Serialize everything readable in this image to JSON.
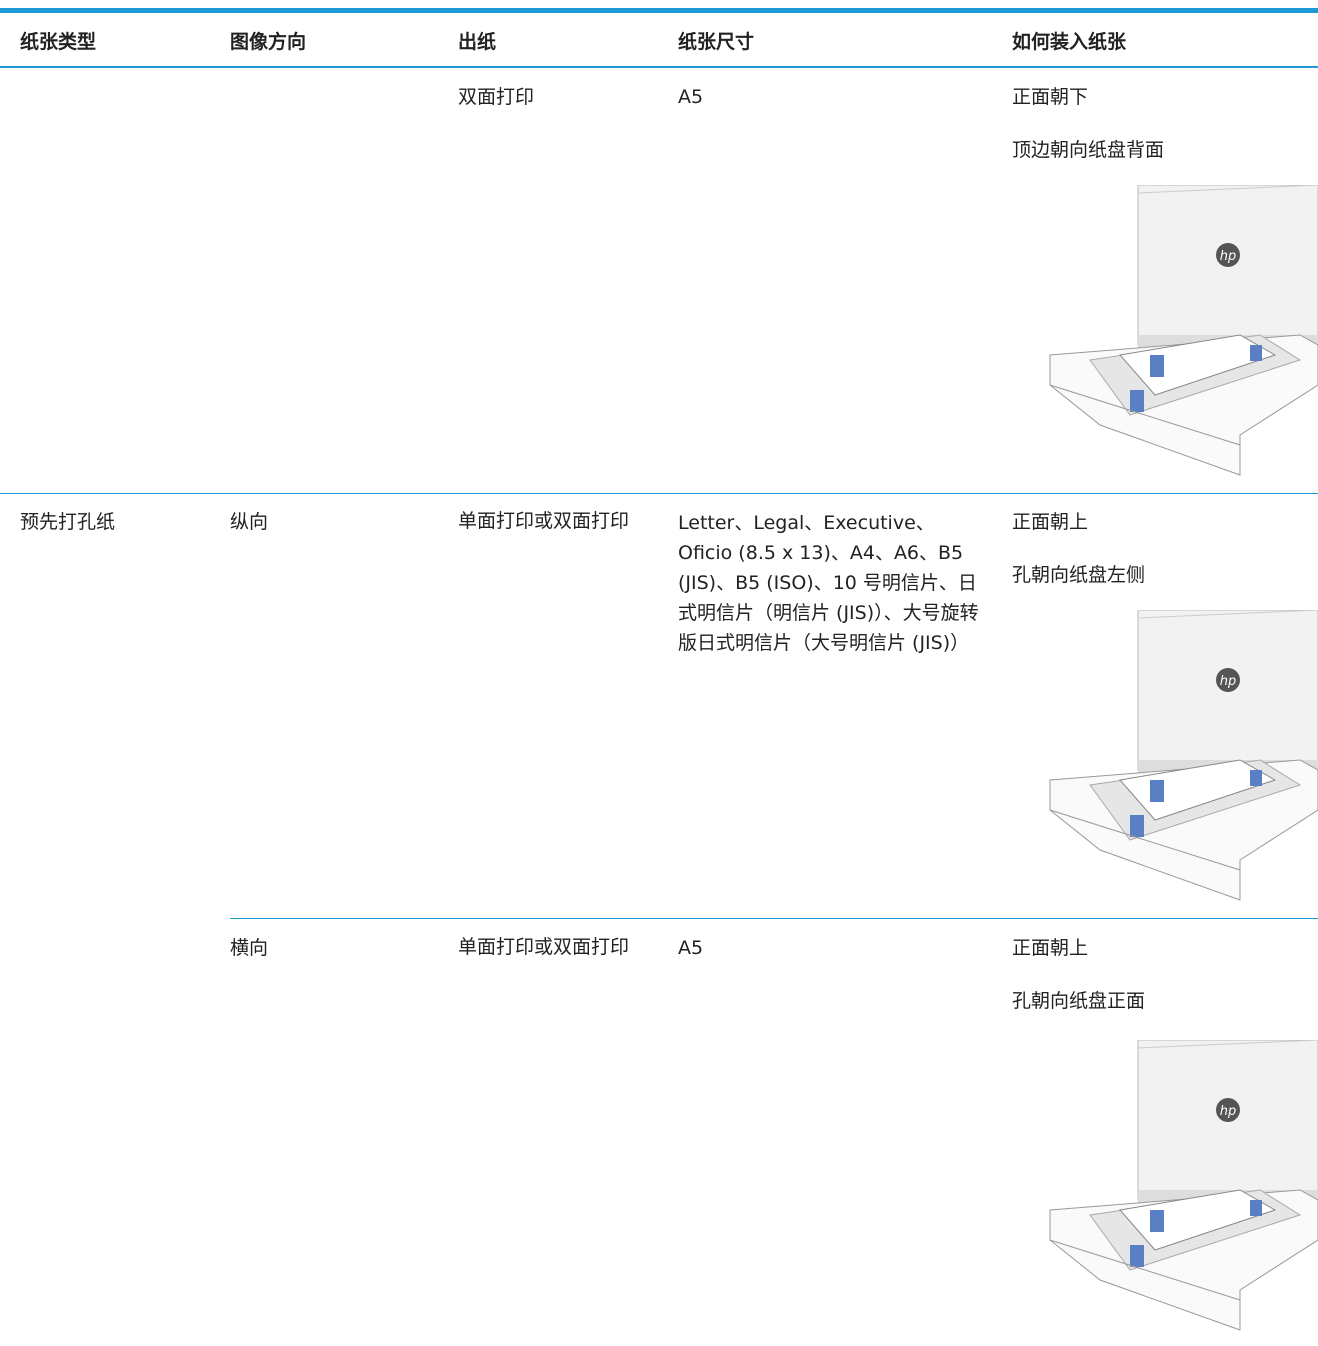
{
  "table": {
    "header": [
      "纸张类型",
      "图像方向",
      "出纸",
      "纸张尺寸",
      "如何装入纸张"
    ],
    "rows": [
      {
        "output": "双面打印",
        "size": "A5",
        "loading": [
          "正面朝下",
          "顶边朝向纸盘背面"
        ]
      },
      {
        "paper_type": "预先打孔纸",
        "orientation": "纵向",
        "output": "单面打印或双面打印",
        "size": "Letter、Legal、Executive、Oficio (8.5 x 13)、A4、A6、B5 (JIS)、B5 (ISO)、10 号明信片、日式明信片（明信片 (JIS)）、大号旋转版日式明信片（大号明信片 (JIS)）",
        "loading": [
          "正面朝上",
          "孔朝向纸盘左侧"
        ]
      },
      {
        "orientation": "横向",
        "output": "单面打印或双面打印",
        "size": "A5",
        "loading": [
          "正面朝上",
          "孔朝向纸盘正面"
        ]
      }
    ]
  }
}
